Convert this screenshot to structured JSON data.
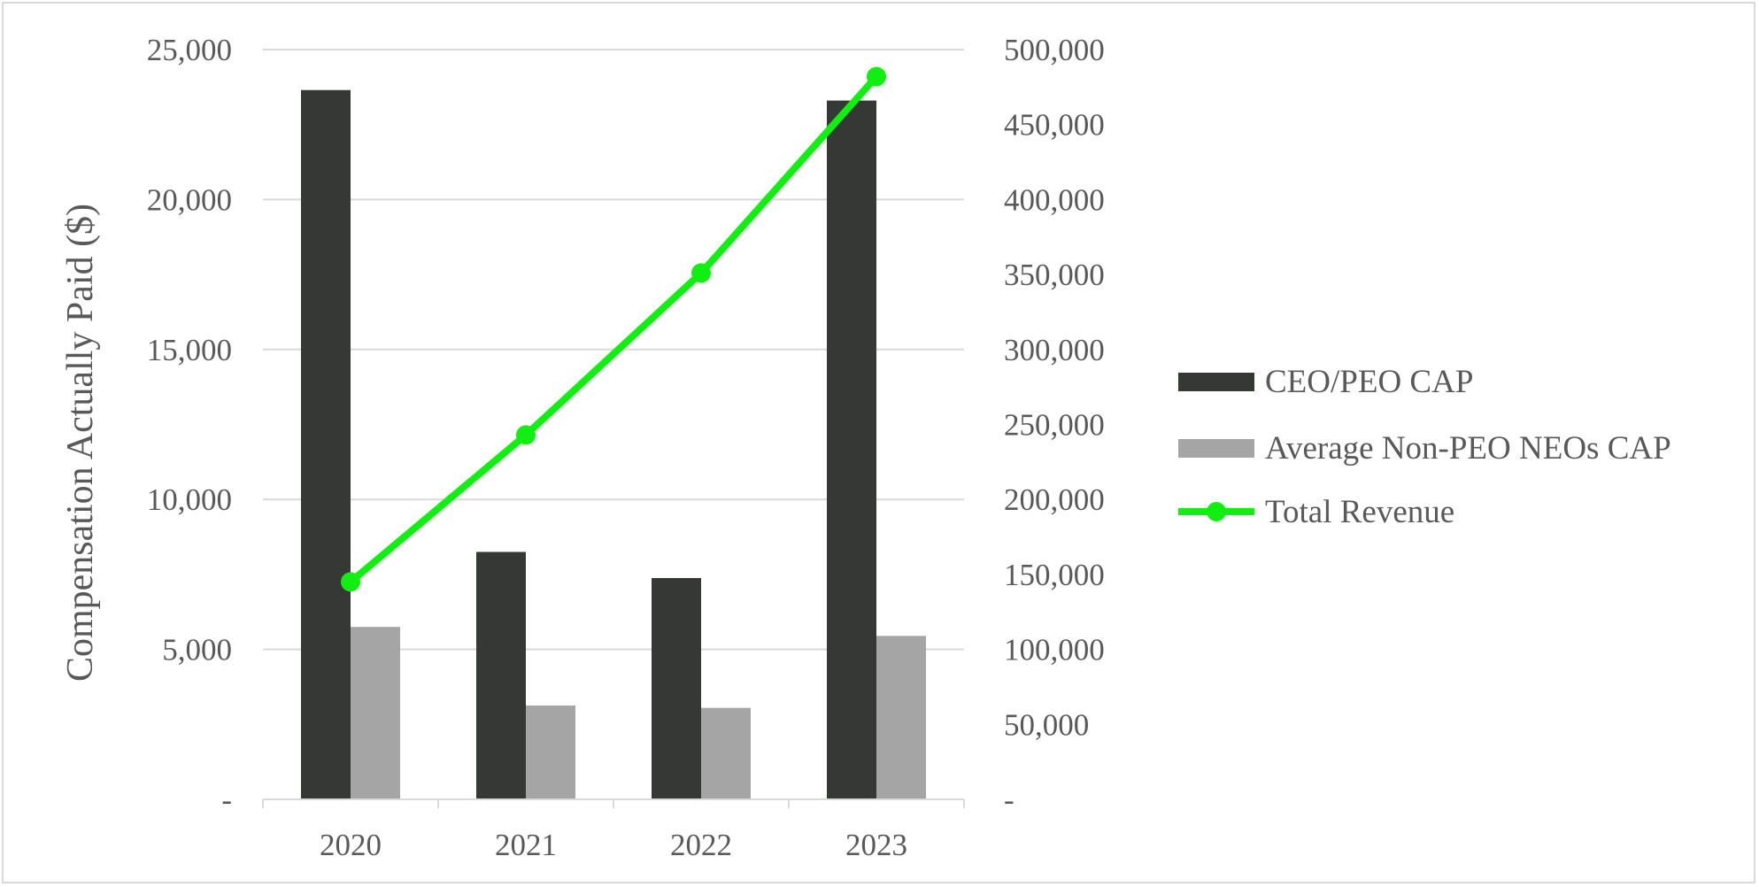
{
  "chart_data": {
    "type": "bar",
    "categories": [
      "2020",
      "2021",
      "2022",
      "2023"
    ],
    "ylabel": "Compensation Actually Paid ($)",
    "ylim": [
      0,
      25000
    ],
    "y2lim": [
      0,
      500000
    ],
    "y_ticks": [
      "-",
      "5,000",
      "10,000",
      "15,000",
      "20,000",
      "25,000"
    ],
    "y2_ticks": [
      "-",
      "50,000",
      "100,000",
      "150,000",
      "200,000",
      "250,000",
      "300,000",
      "350,000",
      "400,000",
      "450,000",
      "500,000"
    ],
    "grid": true,
    "legend_position": "right",
    "series": [
      {
        "name": "CEO/PEO CAP",
        "type": "bar",
        "axis": "left",
        "color": "#363836",
        "values": [
          23650,
          8250,
          7380,
          23300
        ]
      },
      {
        "name": "Average Non-PEO NEOs CAP",
        "type": "bar",
        "axis": "left",
        "color": "#a5a5a5",
        "values": [
          5750,
          3130,
          3050,
          5450
        ]
      },
      {
        "name": "Total Revenue",
        "type": "line",
        "axis": "right",
        "color": "#11ee11",
        "values": [
          145000,
          243000,
          351000,
          482000
        ]
      }
    ]
  }
}
